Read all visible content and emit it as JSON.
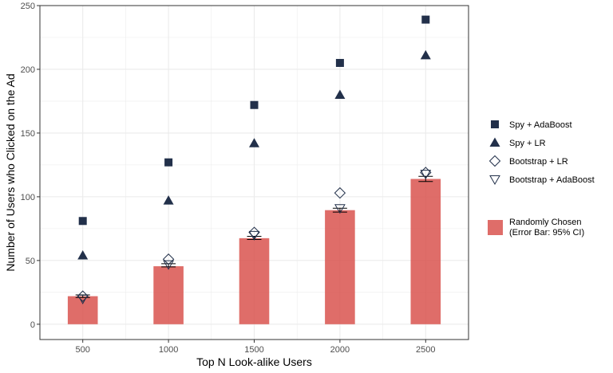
{
  "chart_data": {
    "type": "bar",
    "xlabel": "Top N Look-alike Users",
    "ylabel": "Number of Users who Clicked on the Ad",
    "categories": [
      "500",
      "1000",
      "1500",
      "2000",
      "2500"
    ],
    "ylim": [
      -12,
      250
    ],
    "y_ticks": [
      0,
      50,
      100,
      150,
      200,
      250
    ],
    "grid": true,
    "legend_position": "right",
    "bars": {
      "name": "Randomly Chosen",
      "name_line2": "(Error Bar: 95% CI)",
      "values": [
        22,
        45.5,
        67.5,
        89.5,
        114
      ],
      "error_low": [
        21,
        45,
        66.5,
        88,
        112
      ],
      "error_high": [
        23,
        47.5,
        69,
        91,
        116
      ],
      "color": "#d9534f"
    },
    "series": [
      {
        "name": "Spy + AdaBoost",
        "marker": "square",
        "values": [
          81,
          127,
          172,
          205,
          239
        ]
      },
      {
        "name": "Spy + LR",
        "marker": "triangle-up",
        "values": [
          54,
          97,
          142,
          180,
          211
        ]
      },
      {
        "name": "Bootstrap + LR",
        "marker": "diamond-open",
        "values": [
          22,
          51,
          72,
          103,
          119
        ]
      },
      {
        "name": "Bootstrap + AdaBoost",
        "marker": "triangle-down-open",
        "values": [
          20,
          47,
          70,
          91,
          118
        ]
      }
    ],
    "colors": {
      "marker": "#22304a",
      "bar": "#d9534f",
      "grid": "#ebebeb",
      "panel_border": "#333333"
    }
  }
}
